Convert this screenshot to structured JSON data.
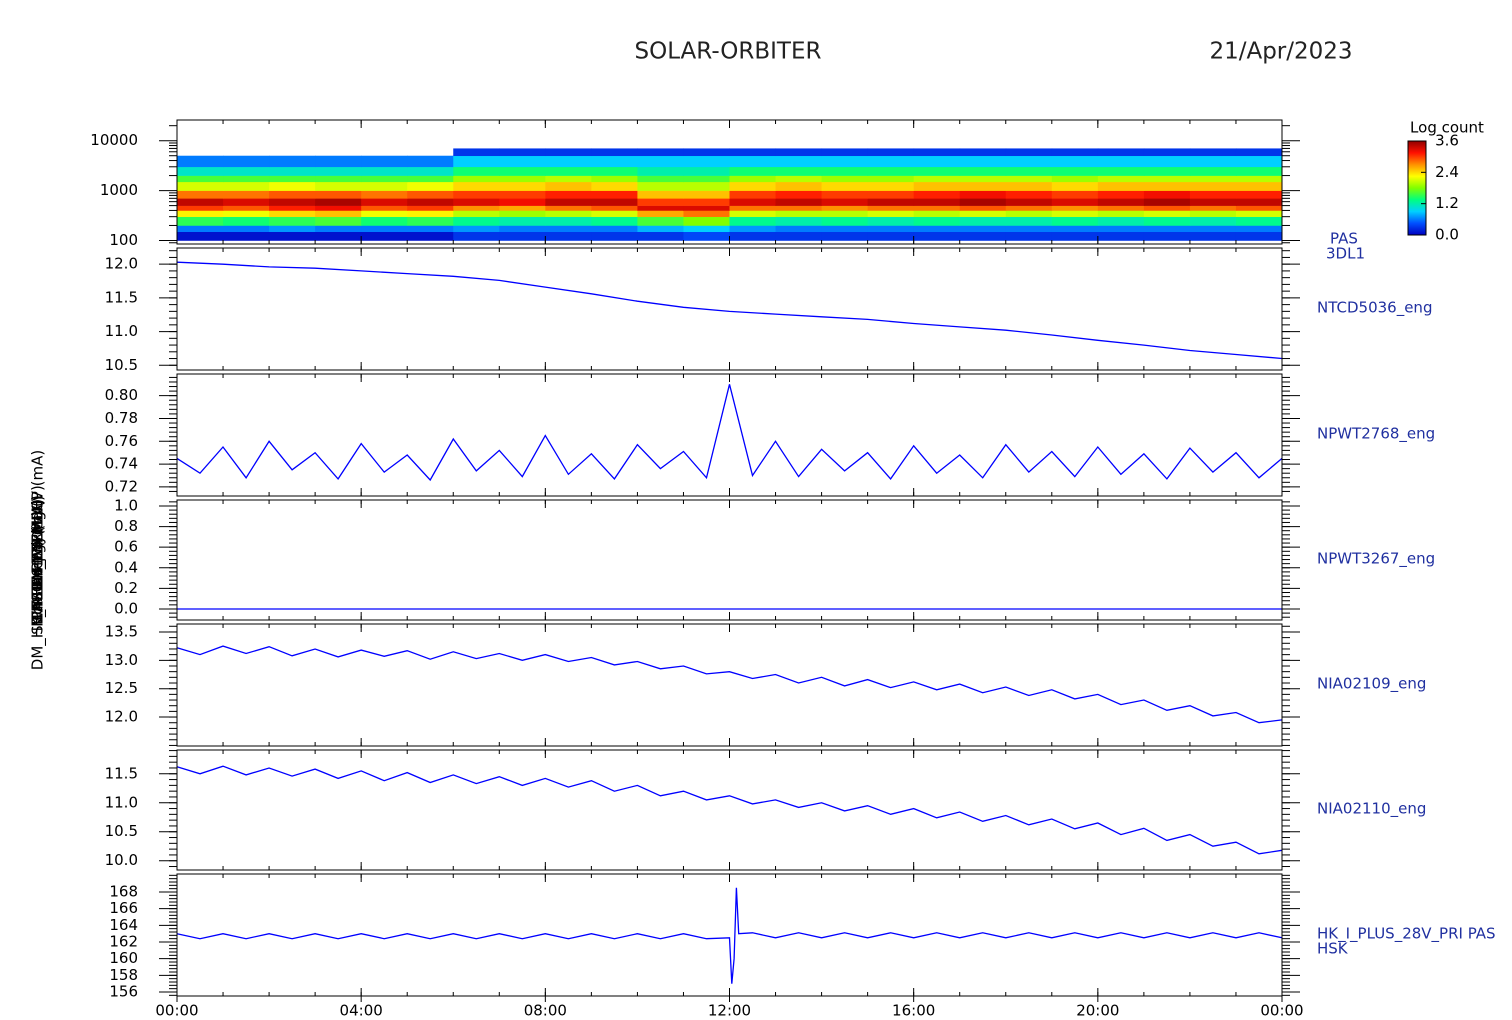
{
  "chart_data": [
    {
      "type": "heatmap",
      "title": "SOLAR-ORBITER",
      "subtitle": "21/Apr/2023",
      "ylabel": "PAS Energy (eV)",
      "label_lines": [
        "PAS",
        "3DL1"
      ],
      "xlim": [
        0,
        24
      ],
      "ylim": [
        85,
        26000
      ],
      "log_y": true,
      "yticks": [
        100,
        1000,
        10000
      ],
      "xbins": [
        0,
        1,
        2,
        3,
        4,
        5,
        6,
        7,
        8,
        9,
        10,
        11,
        12,
        13,
        14,
        15,
        16,
        17,
        18,
        19,
        20,
        21,
        22,
        23,
        24
      ],
      "ybins": [
        100,
        150,
        200,
        300,
        400,
        500,
        700,
        1000,
        1500,
        2000,
        3000,
        5000,
        7000
      ],
      "z": [
        [
          0.1,
          0.1,
          0.1,
          0.1,
          0.1,
          0.1,
          0.3,
          0.3,
          0.3,
          0.3,
          0.3,
          0.4,
          0.3,
          0.3,
          0.3,
          0.3,
          0.3,
          0.3,
          0.3,
          0.3,
          0.3,
          0.3,
          0.3,
          0.3
        ],
        [
          0.6,
          0.6,
          0.7,
          0.6,
          0.6,
          0.6,
          0.7,
          0.6,
          0.6,
          0.6,
          0.8,
          0.9,
          0.7,
          0.6,
          0.6,
          0.6,
          0.6,
          0.6,
          0.6,
          0.6,
          0.6,
          0.6,
          0.6,
          0.6
        ],
        [
          1.5,
          1.4,
          1.5,
          1.6,
          1.4,
          1.5,
          1.3,
          1.2,
          1.2,
          1.3,
          1.6,
          1.8,
          1.3,
          1.2,
          1.3,
          1.2,
          1.3,
          1.2,
          1.2,
          1.3,
          1.2,
          1.3,
          1.2,
          1.3
        ],
        [
          2.3,
          2.2,
          2.4,
          2.5,
          2.2,
          2.3,
          2.0,
          1.9,
          2.0,
          2.1,
          2.6,
          2.8,
          2.1,
          2.0,
          2.0,
          2.1,
          2.0,
          2.1,
          2.0,
          2.1,
          2.0,
          2.1,
          2.0,
          2.1
        ],
        [
          3.0,
          2.9,
          3.1,
          3.2,
          2.9,
          3.0,
          2.7,
          2.6,
          2.8,
          2.9,
          3.3,
          3.3,
          2.8,
          2.8,
          2.7,
          2.8,
          2.8,
          2.9,
          2.8,
          2.7,
          2.8,
          2.9,
          2.8,
          2.9
        ],
        [
          3.4,
          3.3,
          3.4,
          3.5,
          3.3,
          3.4,
          3.3,
          3.2,
          3.4,
          3.4,
          3.0,
          3.0,
          3.3,
          3.4,
          3.3,
          3.4,
          3.4,
          3.5,
          3.4,
          3.3,
          3.4,
          3.5,
          3.4,
          3.4
        ],
        [
          2.8,
          2.8,
          2.9,
          2.9,
          2.8,
          2.9,
          3.0,
          3.0,
          3.1,
          3.1,
          2.5,
          2.5,
          3.0,
          3.1,
          3.0,
          3.0,
          3.1,
          3.2,
          3.1,
          3.0,
          3.1,
          3.2,
          3.1,
          3.1
        ],
        [
          2.1,
          2.1,
          2.2,
          2.1,
          2.1,
          2.2,
          2.4,
          2.4,
          2.5,
          2.4,
          2.0,
          2.0,
          2.4,
          2.5,
          2.4,
          2.4,
          2.5,
          2.5,
          2.5,
          2.4,
          2.5,
          2.5,
          2.5,
          2.5
        ],
        [
          1.6,
          1.6,
          1.6,
          1.6,
          1.6,
          1.6,
          1.9,
          1.9,
          2.0,
          1.9,
          1.6,
          1.6,
          1.9,
          2.0,
          1.9,
          1.9,
          2.0,
          2.0,
          2.0,
          1.9,
          2.0,
          2.0,
          2.0,
          2.0
        ],
        [
          1.1,
          1.1,
          1.1,
          1.1,
          1.1,
          1.1,
          1.4,
          1.4,
          1.4,
          1.4,
          1.2,
          1.2,
          1.4,
          1.4,
          1.4,
          1.4,
          1.4,
          1.4,
          1.4,
          1.4,
          1.4,
          1.4,
          1.4,
          1.4
        ],
        [
          0.6,
          0.6,
          0.6,
          0.6,
          0.6,
          0.6,
          0.9,
          0.9,
          0.9,
          0.9,
          0.9,
          0.9,
          0.9,
          0.9,
          0.9,
          0.9,
          0.9,
          0.9,
          0.9,
          0.9,
          0.9,
          0.9,
          0.9,
          0.9
        ],
        [
          null,
          null,
          null,
          null,
          null,
          null,
          0.3,
          0.3,
          0.3,
          0.3,
          0.3,
          0.3,
          0.3,
          0.3,
          0.3,
          0.3,
          0.3,
          0.3,
          0.3,
          0.3,
          0.3,
          0.3,
          0.3,
          0.3
        ]
      ],
      "colorbar": {
        "title": "Log count",
        "lim": [
          0,
          3.6
        ],
        "ticks": [
          {
            "value": 0,
            "label": "0.0"
          },
          {
            "value": 1.2,
            "label": "1.2"
          },
          {
            "value": 2.4,
            "label": "2.4"
          },
          {
            "value": 3.6,
            "label": "3.6"
          }
        ],
        "colorscale": [
          "#0000c0",
          "#0050ff",
          "#00d0ff",
          "#00ff80",
          "#80ff00",
          "#ffff00",
          "#ff9000",
          "#ff1000",
          "#900000"
        ]
      }
    },
    {
      "type": "line",
      "ylabel": "Box Temp (DegC)",
      "label_lines": [
        "NTCD5036_eng"
      ],
      "color": "#0000ff",
      "xlim": [
        0,
        24
      ],
      "ylim": [
        10.43,
        12.24
      ],
      "yticks": [
        {
          "value": 10.5,
          "label": "10.5"
        },
        {
          "value": 11,
          "label": "11.0"
        },
        {
          "value": 11.5,
          "label": "11.5"
        },
        {
          "value": 12,
          "label": "12.0"
        }
      ],
      "x": [
        0,
        1,
        2,
        3,
        4,
        5,
        6,
        7,
        8,
        9,
        10,
        11,
        12,
        13,
        14,
        15,
        16,
        17,
        18,
        19,
        20,
        21,
        22,
        23,
        24
      ],
      "values": [
        12.03,
        12.0,
        11.96,
        11.94,
        11.9,
        11.86,
        11.82,
        11.76,
        11.66,
        11.56,
        11.45,
        11.36,
        11.3,
        11.26,
        11.22,
        11.18,
        11.12,
        11.07,
        11.02,
        10.95,
        10.87,
        10.8,
        10.72,
        10.66,
        10.6
      ]
    },
    {
      "type": "line",
      "ylabel": "SWA-EAS1 TEMP (V)",
      "label_lines": [
        "NPWT2768_eng"
      ],
      "color": "#0000ff",
      "xlim": [
        0,
        24
      ],
      "ylim": [
        0.712,
        0.819
      ],
      "yticks": [
        0.72,
        0.74,
        0.76,
        0.78,
        {
          "value": 0.8,
          "label": "0.80"
        }
      ],
      "x": [
        0,
        0.5,
        1,
        1.5,
        2,
        2.5,
        3,
        3.5,
        4,
        4.5,
        5,
        5.5,
        6,
        6.5,
        7,
        7.5,
        8,
        8.5,
        9,
        9.5,
        10,
        10.5,
        11,
        11.5,
        12,
        12.5,
        13,
        13.5,
        14,
        14.5,
        15,
        15.5,
        16,
        16.5,
        17,
        17.5,
        18,
        18.5,
        19,
        19.5,
        20,
        20.5,
        21,
        21.5,
        22,
        22.5,
        23,
        23.5,
        24
      ],
      "values": [
        0.745,
        0.732,
        0.755,
        0.728,
        0.76,
        0.735,
        0.75,
        0.727,
        0.758,
        0.733,
        0.748,
        0.726,
        0.762,
        0.734,
        0.752,
        0.729,
        0.765,
        0.731,
        0.749,
        0.727,
        0.757,
        0.736,
        0.751,
        0.728,
        0.81,
        0.73,
        0.76,
        0.729,
        0.753,
        0.734,
        0.75,
        0.727,
        0.756,
        0.732,
        0.748,
        0.728,
        0.757,
        0.733,
        0.751,
        0.729,
        0.755,
        0.731,
        0.749,
        0.727,
        0.754,
        0.733,
        0.75,
        0.728,
        0.745
      ]
    },
    {
      "type": "line",
      "ylabel": "TSW-PWR (V)",
      "label_lines": [
        "NPWT3267_eng"
      ],
      "color": "#0000ff",
      "xlim": [
        0,
        24
      ],
      "ylim": [
        -0.107,
        1.058
      ],
      "yticks": [
        {
          "value": 0,
          "label": "0.0"
        },
        0.2,
        0.4,
        0.6,
        0.8,
        {
          "value": 1,
          "label": "1.0"
        }
      ],
      "x": [
        0,
        1,
        2,
        3,
        4,
        5,
        6,
        7,
        8,
        9,
        10,
        11,
        12,
        13,
        14,
        15,
        16,
        17,
        18,
        19,
        20,
        21,
        22,
        23,
        24
      ],
      "values": [
        0,
        0,
        0,
        0,
        0,
        0,
        0,
        0,
        0,
        0,
        0,
        0,
        0,
        0,
        0,
        0,
        0,
        0,
        0,
        0,
        0,
        0,
        0,
        0,
        0
      ]
    },
    {
      "type": "line",
      "ylabel": "THERM_C4 (mA)",
      "label_lines": [
        "NIA02109_eng"
      ],
      "color": "#0000ff",
      "xlim": [
        0,
        24
      ],
      "ylim": [
        11.49,
        13.64
      ],
      "yticks": [
        {
          "value": 12,
          "label": "12.0"
        },
        12.5,
        {
          "value": 13,
          "label": "13.0"
        },
        13.5
      ],
      "x": [
        0,
        0.5,
        1,
        1.5,
        2,
        2.5,
        3,
        3.5,
        4,
        4.5,
        5,
        5.5,
        6,
        6.5,
        7,
        7.5,
        8,
        8.5,
        9,
        9.5,
        10,
        10.5,
        11,
        11.5,
        12,
        12.5,
        13,
        13.5,
        14,
        14.5,
        15,
        15.5,
        16,
        16.5,
        17,
        17.5,
        18,
        18.5,
        19,
        19.5,
        20,
        20.5,
        21,
        21.5,
        22,
        22.5,
        23,
        23.5,
        24
      ],
      "values": [
        13.22,
        13.1,
        13.25,
        13.12,
        13.24,
        13.08,
        13.2,
        13.06,
        13.18,
        13.07,
        13.17,
        13.02,
        13.15,
        13.03,
        13.12,
        13.0,
        13.1,
        12.98,
        13.05,
        12.92,
        12.98,
        12.85,
        12.9,
        12.76,
        12.8,
        12.68,
        12.75,
        12.6,
        12.7,
        12.55,
        12.66,
        12.52,
        12.62,
        12.48,
        12.58,
        12.43,
        12.53,
        12.38,
        12.48,
        12.32,
        12.4,
        12.22,
        12.3,
        12.12,
        12.2,
        12.02,
        12.08,
        11.9,
        11.95
      ]
    },
    {
      "type": "line",
      "ylabel": "THERM_C5 (mA)",
      "label_lines": [
        "NIA02110_eng"
      ],
      "color": "#0000ff",
      "xlim": [
        0,
        24
      ],
      "ylim": [
        9.84,
        11.91
      ],
      "yticks": [
        {
          "value": 10,
          "label": "10.0"
        },
        10.5,
        {
          "value": 11,
          "label": "11.0"
        },
        11.5
      ],
      "x": [
        0,
        0.5,
        1,
        1.5,
        2,
        2.5,
        3,
        3.5,
        4,
        4.5,
        5,
        5.5,
        6,
        6.5,
        7,
        7.5,
        8,
        8.5,
        9,
        9.5,
        10,
        10.5,
        11,
        11.5,
        12,
        12.5,
        13,
        13.5,
        14,
        14.5,
        15,
        15.5,
        16,
        16.5,
        17,
        17.5,
        18,
        18.5,
        19,
        19.5,
        20,
        20.5,
        21,
        21.5,
        22,
        22.5,
        23,
        23.5,
        24
      ],
      "values": [
        11.62,
        11.5,
        11.63,
        11.48,
        11.6,
        11.46,
        11.58,
        11.42,
        11.55,
        11.38,
        11.52,
        11.35,
        11.48,
        11.33,
        11.45,
        11.3,
        11.42,
        11.27,
        11.38,
        11.2,
        11.3,
        11.12,
        11.2,
        11.05,
        11.12,
        10.98,
        11.05,
        10.92,
        11.0,
        10.86,
        10.95,
        10.8,
        10.9,
        10.74,
        10.84,
        10.68,
        10.78,
        10.62,
        10.72,
        10.55,
        10.65,
        10.45,
        10.56,
        10.35,
        10.45,
        10.25,
        10.32,
        10.12,
        10.18
      ]
    },
    {
      "type": "line",
      "ylabel": "DM_HK_IMON_PERMLHP (mA)",
      "label_lines": [
        "HK_I_PLUS_28V_PRI PAS",
        "HSK"
      ],
      "color": "#0000ff",
      "xlim": [
        0,
        24
      ],
      "ylim": [
        155.52,
        170.16
      ],
      "yticks": [
        156,
        158,
        160,
        162,
        164,
        166,
        168
      ],
      "xticks": [
        {
          "value": 0,
          "label": "00:00"
        },
        {
          "value": 4,
          "label": "04:00"
        },
        {
          "value": 8,
          "label": "08:00"
        },
        {
          "value": 12,
          "label": "12:00"
        },
        {
          "value": 16,
          "label": "16:00"
        },
        {
          "value": 20,
          "label": "20:00"
        },
        {
          "value": 24,
          "label": "00:00"
        }
      ],
      "x": [
        0,
        0.5,
        1,
        1.5,
        2,
        2.5,
        3,
        3.5,
        4,
        4.5,
        5,
        5.5,
        6,
        6.5,
        7,
        7.5,
        8,
        8.5,
        9,
        9.5,
        10,
        10.5,
        11,
        11.5,
        12,
        12.05,
        12.1,
        12.15,
        12.2,
        12.5,
        13,
        13.5,
        14,
        14.5,
        15,
        15.5,
        16,
        16.5,
        17,
        17.5,
        18,
        18.5,
        19,
        19.5,
        20,
        20.5,
        21,
        21.5,
        22,
        22.5,
        23,
        23.5,
        24
      ],
      "values": [
        163.0,
        162.4,
        163.0,
        162.4,
        163.0,
        162.4,
        163.0,
        162.4,
        163.0,
        162.4,
        163.0,
        162.4,
        163.0,
        162.4,
        163.0,
        162.4,
        163.0,
        162.4,
        163.0,
        162.4,
        163.0,
        162.4,
        163.0,
        162.4,
        162.5,
        157.0,
        160.0,
        168.5,
        163.0,
        163.1,
        162.5,
        163.1,
        162.5,
        163.1,
        162.5,
        163.1,
        162.5,
        163.1,
        162.5,
        163.1,
        162.5,
        163.1,
        162.5,
        163.1,
        162.5,
        163.1,
        162.5,
        163.1,
        162.5,
        163.1,
        162.5,
        163.1,
        162.5
      ]
    }
  ]
}
